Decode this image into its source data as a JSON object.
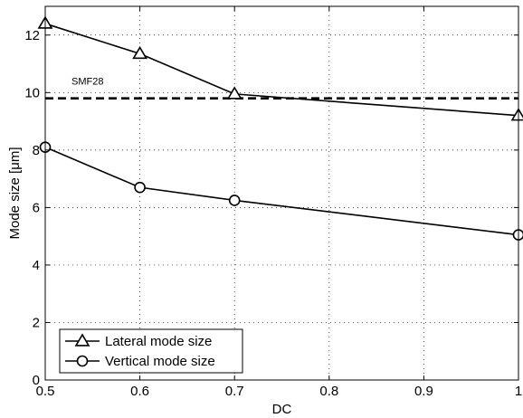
{
  "chart_data": {
    "type": "line",
    "xlabel": "DC",
    "ylabel": "Mode size [μm]",
    "xlim": [
      0.5,
      1.0
    ],
    "ylim": [
      0,
      13
    ],
    "xticks": [
      0.5,
      0.6,
      0.7,
      0.8,
      0.9,
      1.0
    ],
    "xtick_labels": [
      "0.5",
      "0.6",
      "0.7",
      "0.8",
      "0.9",
      "1"
    ],
    "yticks": [
      0,
      2,
      4,
      6,
      8,
      10,
      12
    ],
    "ytick_labels": [
      "0",
      "2",
      "4",
      "6",
      "8",
      "10",
      "12"
    ],
    "grid": true,
    "legend_position": "bottom-left",
    "series": [
      {
        "name": "Lateral mode size",
        "marker": "triangle",
        "color": "#000000",
        "x": [
          0.5,
          0.6,
          0.7,
          1.0
        ],
        "y": [
          12.4,
          11.35,
          9.95,
          9.2
        ]
      },
      {
        "name": "Vertical mode size",
        "marker": "circle",
        "color": "#000000",
        "x": [
          0.5,
          0.6,
          0.7,
          1.0
        ],
        "y": [
          8.1,
          6.7,
          6.25,
          5.05
        ]
      }
    ],
    "reference_line": {
      "label": "SMF28",
      "y": 9.8,
      "style": "dashed"
    }
  }
}
